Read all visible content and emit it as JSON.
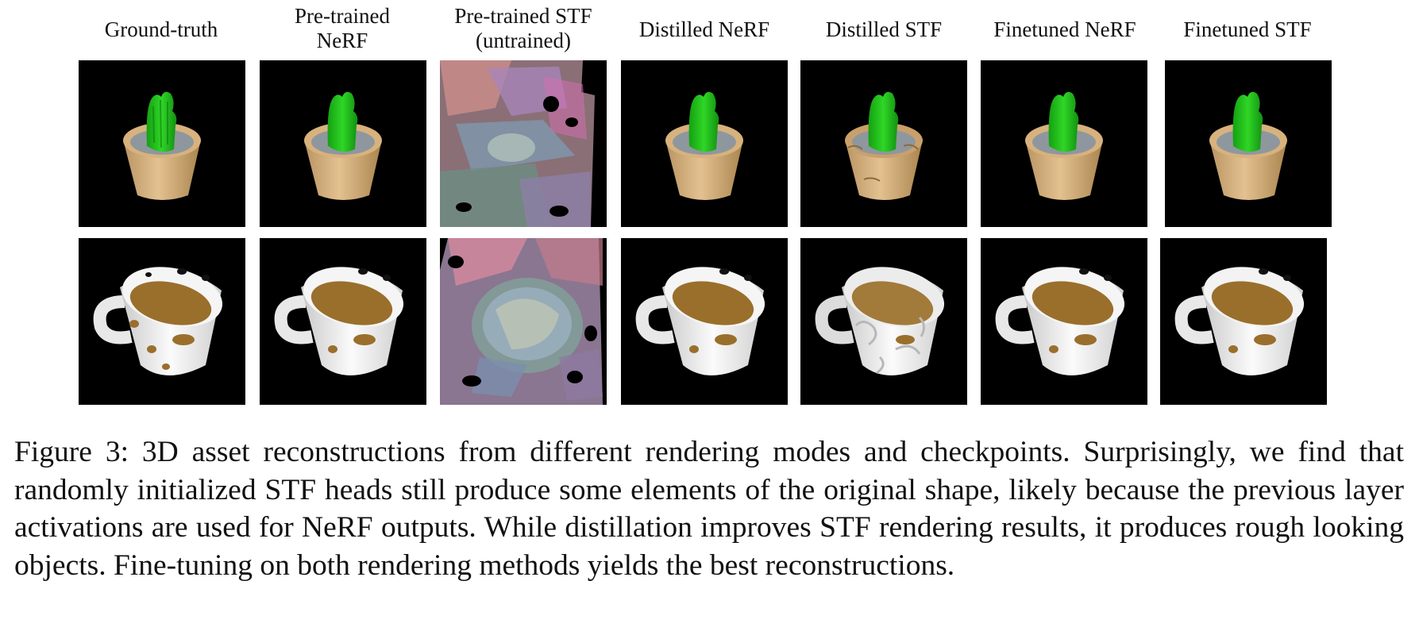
{
  "column_headers": [
    {
      "line1": "Ground-truth",
      "line2": ""
    },
    {
      "line1": "Pre-trained",
      "line2": "NeRF"
    },
    {
      "line1": "Pre-trained STF",
      "line2": "(untrained)"
    },
    {
      "line1": "Distilled NeRF",
      "line2": ""
    },
    {
      "line1": "Distilled STF",
      "line2": ""
    },
    {
      "line1": "Finetuned NeRF",
      "line2": ""
    },
    {
      "line1": "Finetuned STF",
      "line2": ""
    }
  ],
  "rows": [
    {
      "object": "cactus-in-pot"
    },
    {
      "object": "perforated-mug"
    }
  ],
  "colors": {
    "background": "#000000",
    "cactus_green": "#22c41a",
    "pot_tan": "#d9b583",
    "soil_gray": "#8e959c",
    "mug_white": "#f2f2f2",
    "coffee_brown": "#9a6f2c"
  },
  "caption": "Figure 3: 3D asset reconstructions from different rendering modes and checkpoints. Surprisingly, we find that randomly initialized STF heads still produce some elements of the original shape, likely because the previous layer activations are used for NeRF outputs. While distillation improves STF rendering results, it produces rough looking objects. Fine-tuning on both rendering methods yields the best reconstructions."
}
